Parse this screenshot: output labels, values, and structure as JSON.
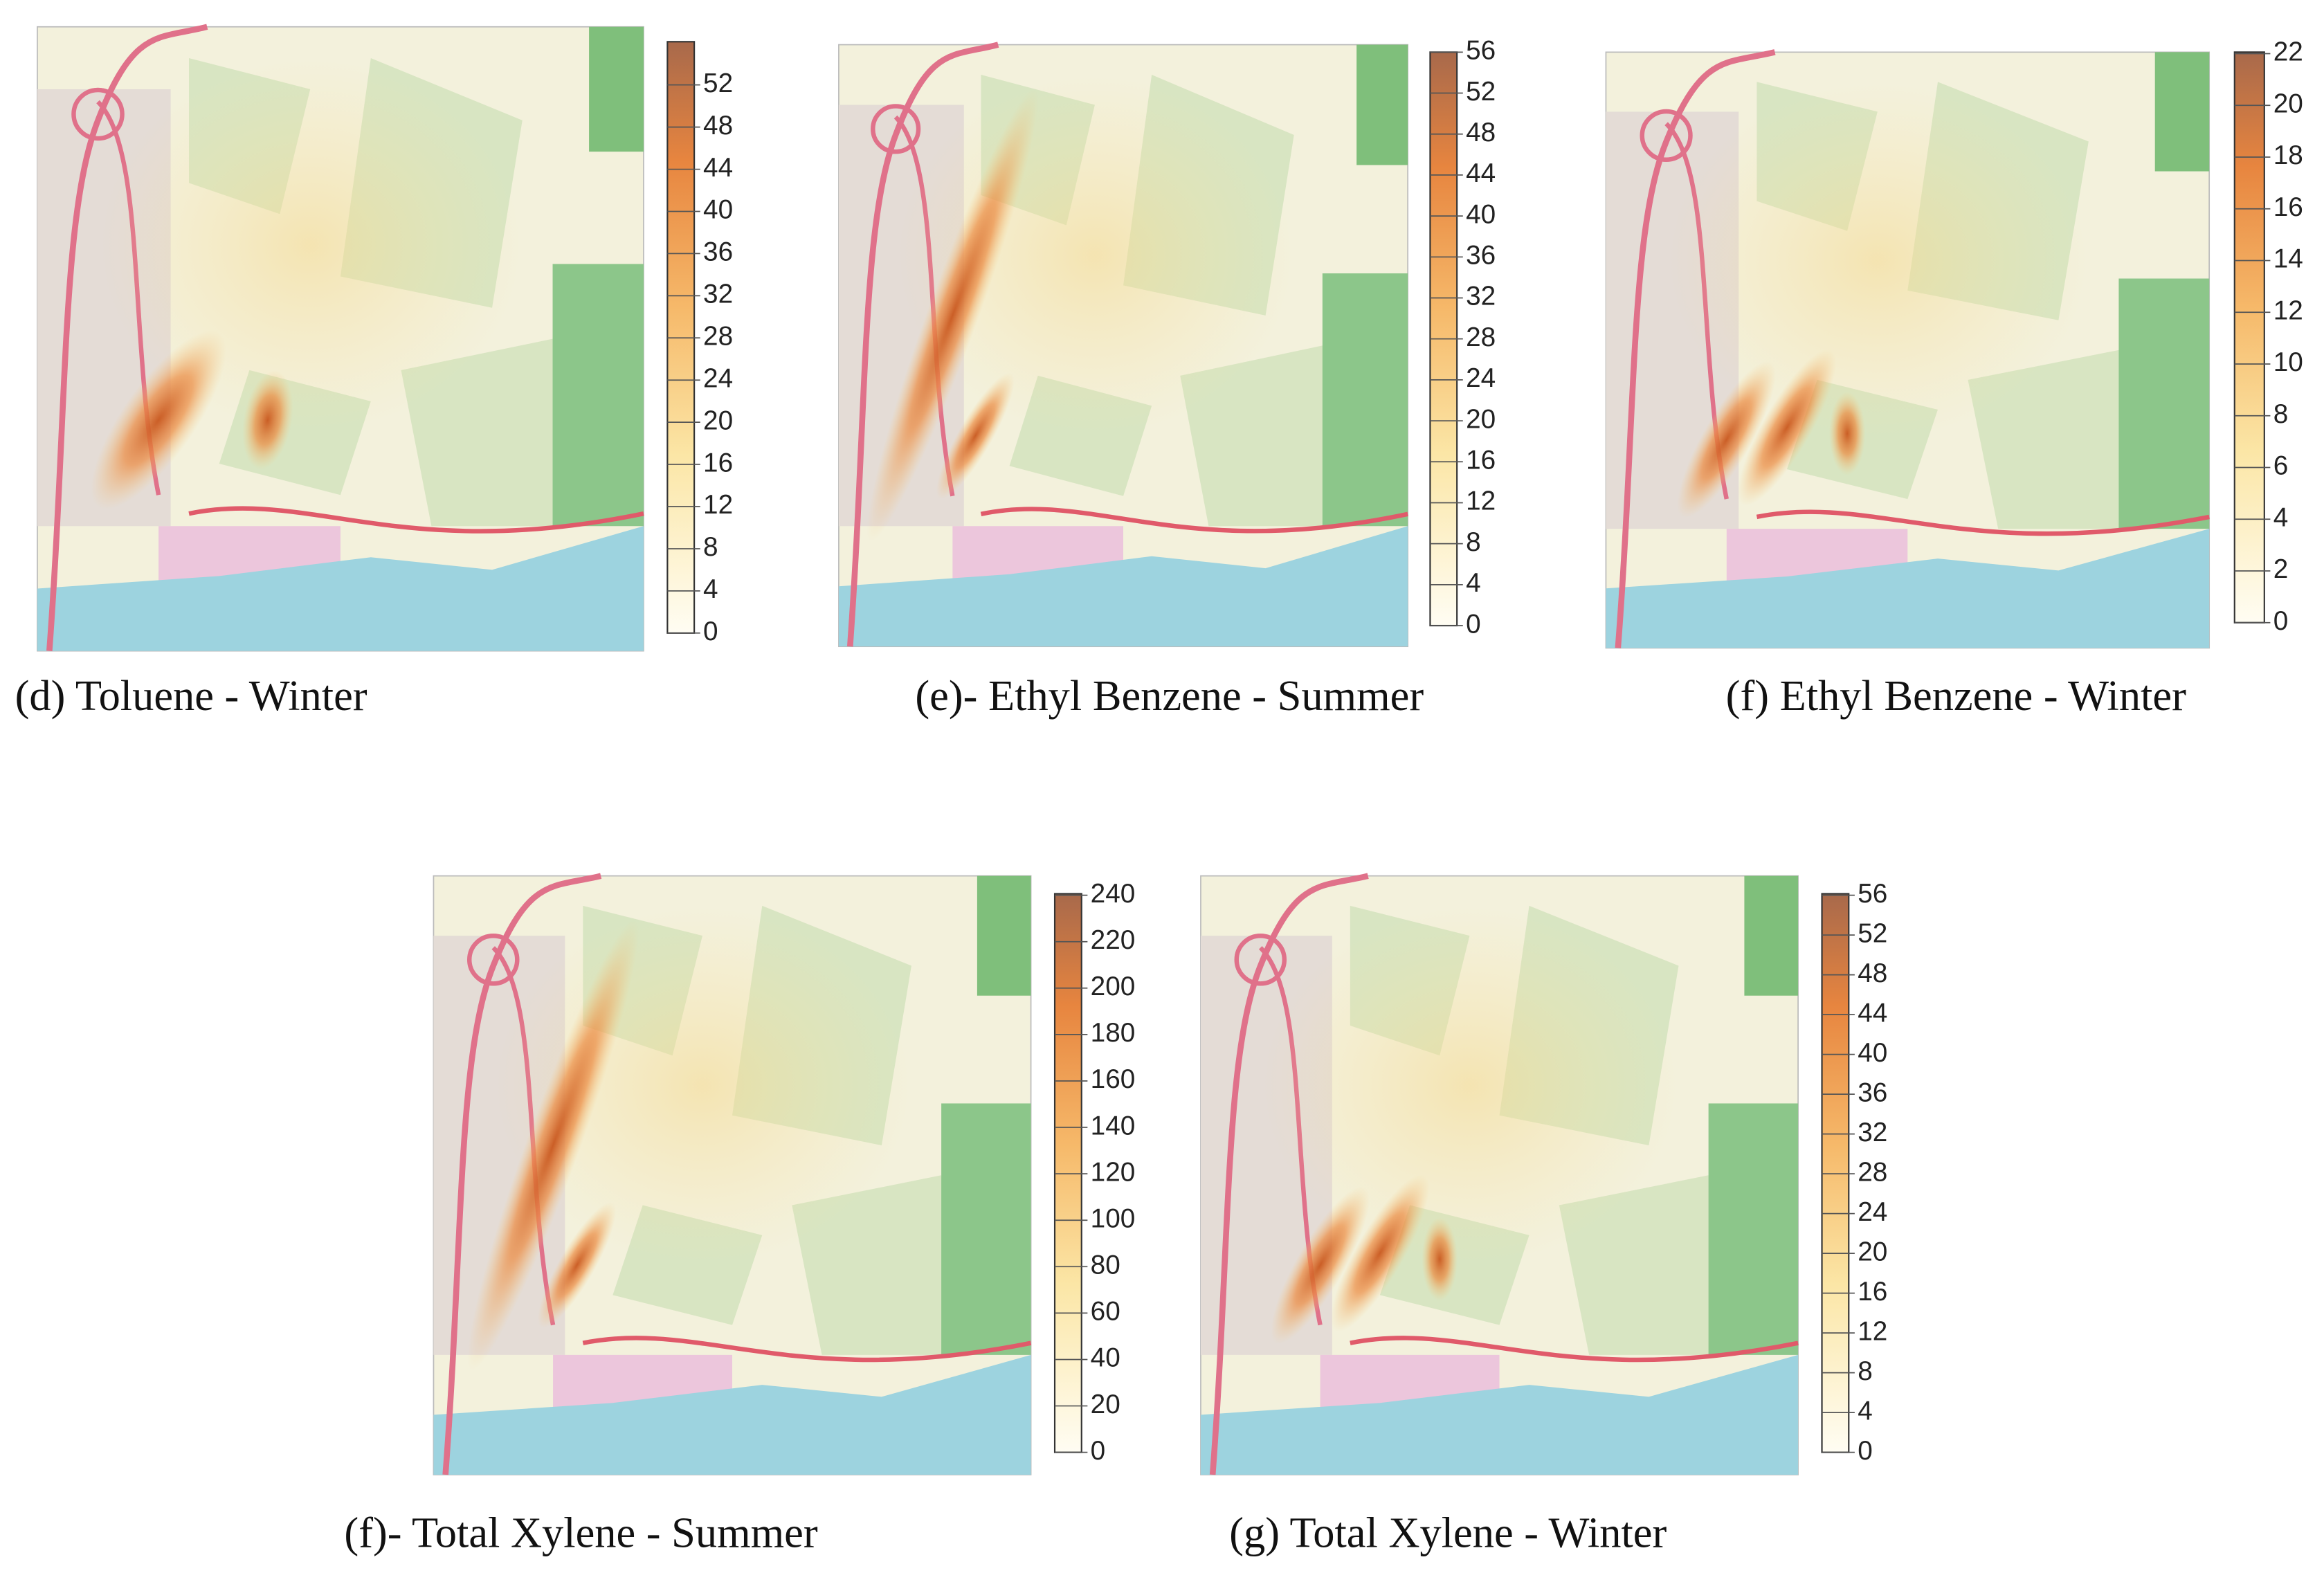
{
  "panels": [
    {
      "caption": "(d) Toluene - Winter",
      "colorbar_ticks": [
        0,
        4,
        8,
        12,
        16,
        20,
        24,
        28,
        32,
        36,
        40,
        44,
        48,
        52
      ]
    },
    {
      "caption": "(e)- Ethyl Benzene - Summer",
      "colorbar_ticks": [
        0,
        4,
        8,
        12,
        16,
        20,
        24,
        28,
        32,
        36,
        40,
        44,
        48,
        52,
        56
      ]
    },
    {
      "caption": "(f) Ethyl Benzene - Winter",
      "colorbar_ticks": [
        0,
        2,
        4,
        6,
        8,
        10,
        12,
        14,
        16,
        18,
        20,
        22
      ]
    },
    {
      "caption": "(f)- Total Xylene - Summer",
      "colorbar_ticks": [
        0,
        20,
        40,
        60,
        80,
        100,
        120,
        140,
        160,
        180,
        200,
        220,
        240
      ]
    },
    {
      "caption": "(g) Total Xylene - Winter",
      "colorbar_ticks": [
        0,
        4,
        8,
        12,
        16,
        20,
        24,
        28,
        32,
        36,
        40,
        44,
        48,
        52,
        56
      ]
    }
  ]
}
